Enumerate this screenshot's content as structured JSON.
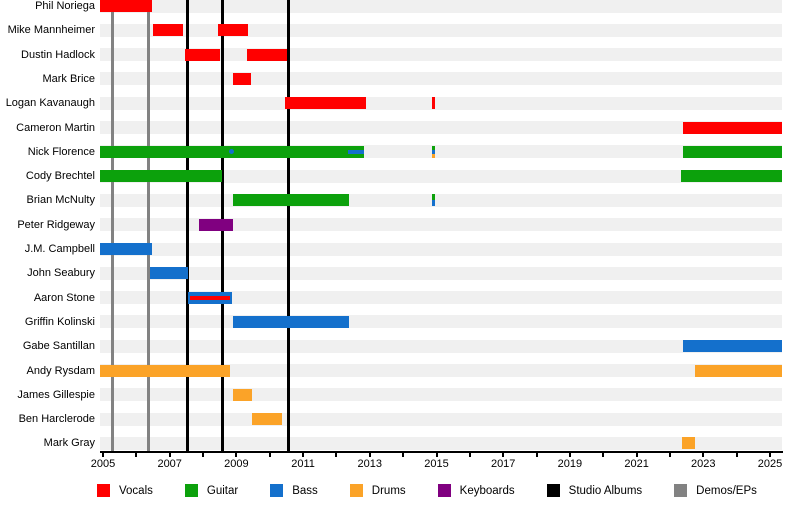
{
  "chart_data": {
    "type": "timeline",
    "description": "Band members timeline (gantt-style) with roles, studio albums and demos/EPs markers",
    "x_axis": {
      "plot_start_year": 2004.9,
      "plot_end_year": 2025.35,
      "tick_years": [
        2005,
        2006,
        2007,
        2008,
        2009,
        2010,
        2011,
        2012,
        2013,
        2014,
        2015,
        2016,
        2017,
        2018,
        2019,
        2020,
        2021,
        2022,
        2023,
        2024,
        2025
      ],
      "label_years": [
        "2005",
        "2007",
        "2009",
        "2011",
        "2013",
        "2015",
        "2017",
        "2019",
        "2021",
        "2023",
        "2025"
      ]
    },
    "colors": {
      "vocals": "#ff0000",
      "guitar": "#0ca10c",
      "bass": "#1470cc",
      "drums": "#fba328",
      "keyboards": "#800080",
      "studio_albums": "#000000",
      "demos_eps": "#828282",
      "row_band": "#f0f0f0"
    },
    "legend": [
      {
        "role": "vocals",
        "label": "Vocals"
      },
      {
        "role": "guitar",
        "label": "Guitar"
      },
      {
        "role": "bass",
        "label": "Bass"
      },
      {
        "role": "drums",
        "label": "Drums"
      },
      {
        "role": "keyboards",
        "label": "Keyboards"
      },
      {
        "role": "studio_albums",
        "label": "Studio Albums"
      },
      {
        "role": "demos_eps",
        "label": "Demos/EPs"
      }
    ],
    "studio_albums_years": [
      2007.52,
      2008.57,
      2010.55
    ],
    "demos_eps_years": [
      2005.27,
      2006.35
    ],
    "members": [
      {
        "name": "Phil Noriega",
        "segments": [
          {
            "role": "vocals",
            "start": 2004.9,
            "end": 2006.47
          }
        ]
      },
      {
        "name": "Mike Mannheimer",
        "segments": [
          {
            "role": "vocals",
            "start": 2006.5,
            "end": 2007.4
          },
          {
            "role": "vocals",
            "start": 2008.45,
            "end": 2009.35
          }
        ]
      },
      {
        "name": "Dustin Hadlock",
        "segments": [
          {
            "role": "vocals",
            "start": 2007.46,
            "end": 2008.51
          },
          {
            "role": "vocals",
            "start": 2009.32,
            "end": 2010.52
          }
        ]
      },
      {
        "name": "Mark Brice",
        "segments": [
          {
            "role": "vocals",
            "start": 2008.9,
            "end": 2009.44
          }
        ]
      },
      {
        "name": "Logan Kavanaugh",
        "segments": [
          {
            "role": "vocals",
            "start": 2010.46,
            "end": 2012.89
          },
          {
            "event": true,
            "year": 2014.92,
            "roles": [
              "vocals"
            ]
          }
        ]
      },
      {
        "name": "Cameron Martin",
        "segments": [
          {
            "role": "vocals",
            "start": 2022.39,
            "end": 2025.35
          }
        ]
      },
      {
        "name": "Nick Florence",
        "segments": [
          {
            "role": "guitar",
            "start": 2004.9,
            "end": 2012.83
          },
          {
            "role": "bass",
            "year": 2008.84,
            "dot": true
          },
          {
            "role": "bass",
            "start": 2012.35,
            "end": 2012.83,
            "overlay": true
          },
          {
            "event": true,
            "year": 2014.92,
            "roles": [
              "guitar",
              "bass",
              "drums"
            ]
          },
          {
            "role": "guitar",
            "start": 2022.39,
            "end": 2025.35
          }
        ]
      },
      {
        "name": "Cody Brechtel",
        "segments": [
          {
            "role": "guitar",
            "start": 2004.9,
            "end": 2008.57
          },
          {
            "role": "guitar",
            "start": 2022.33,
            "end": 2025.35
          }
        ]
      },
      {
        "name": "Brian McNulty",
        "segments": [
          {
            "role": "guitar",
            "start": 2008.9,
            "end": 2012.38
          },
          {
            "event": true,
            "year": 2014.92,
            "roles": [
              "guitar",
              "bass"
            ]
          }
        ]
      },
      {
        "name": "Peter Ridgeway",
        "segments": [
          {
            "role": "keyboards",
            "start": 2007.88,
            "end": 2008.9
          }
        ]
      },
      {
        "name": "J.M. Campbell",
        "segments": [
          {
            "role": "bass",
            "start": 2004.9,
            "end": 2006.47
          }
        ]
      },
      {
        "name": "John Seabury",
        "segments": [
          {
            "role": "bass",
            "start": 2006.41,
            "end": 2007.55
          }
        ]
      },
      {
        "name": "Aaron Stone",
        "segments": [
          {
            "role": "bass",
            "start": 2007.55,
            "end": 2008.87
          },
          {
            "role": "vocals",
            "start": 2007.61,
            "end": 2008.81,
            "overlay": true
          }
        ]
      },
      {
        "name": "Griffin Kolinski",
        "segments": [
          {
            "role": "bass",
            "start": 2008.9,
            "end": 2012.38
          }
        ]
      },
      {
        "name": "Gabe Santillan",
        "segments": [
          {
            "role": "bass",
            "start": 2022.39,
            "end": 2025.35
          }
        ]
      },
      {
        "name": "Andy Rysdam",
        "segments": [
          {
            "role": "drums",
            "start": 2004.9,
            "end": 2008.81
          },
          {
            "role": "drums",
            "start": 2022.75,
            "end": 2025.35
          }
        ]
      },
      {
        "name": "James Gillespie",
        "segments": [
          {
            "role": "drums",
            "start": 2008.9,
            "end": 2009.47
          }
        ]
      },
      {
        "name": "Ben Harclerode",
        "segments": [
          {
            "role": "drums",
            "start": 2009.47,
            "end": 2010.37
          }
        ]
      },
      {
        "name": "Mark Gray",
        "segments": [
          {
            "role": "drums",
            "start": 2022.36,
            "end": 2022.75
          }
        ]
      }
    ]
  }
}
